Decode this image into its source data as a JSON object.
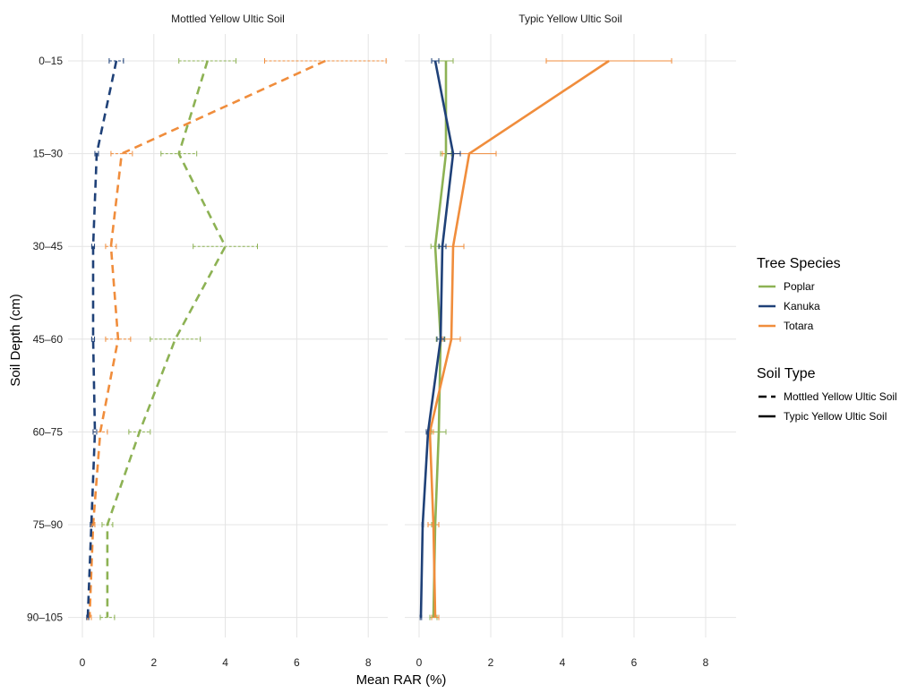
{
  "chart_data": {
    "type": "line",
    "orientation": "depth-profile",
    "xlabel": "Mean RAR (%)",
    "ylabel": "Soil Depth (cm)",
    "xlim": [
      0,
      9
    ],
    "x_ticks": [
      0,
      2,
      4,
      6,
      8
    ],
    "x_tick_labels": [
      "0",
      "2",
      "4",
      "6",
      "8"
    ],
    "depths": [
      "0–15",
      "15–30",
      "30–45",
      "45–60",
      "60–75",
      "75–90",
      "90–105"
    ],
    "grid": true,
    "legend_position": "right",
    "legend": {
      "species_title": "Tree Species",
      "species": [
        {
          "key": "poplar",
          "name": "Poplar",
          "color": "#8db254"
        },
        {
          "key": "kanuka",
          "name": "Kanuka",
          "color": "#1f4178"
        },
        {
          "key": "totara",
          "name": "Totara",
          "color": "#f08d3c"
        }
      ],
      "soil_title": "Soil Type",
      "soil": [
        {
          "key": "mottled",
          "name": "Mottled Yellow Ultic Soil",
          "line": "dashed"
        },
        {
          "key": "typic",
          "name": "Typic Yellow Ultic Soil",
          "line": "solid"
        }
      ]
    },
    "panels": [
      {
        "title": "Mottled Yellow Ultic Soil",
        "line": "dashed",
        "series": [
          {
            "species": "poplar",
            "values": [
              3.5,
              2.7,
              4.0,
              2.6,
              1.6,
              0.7,
              0.7
            ],
            "err": [
              0.8,
              0.5,
              0.9,
              0.7,
              0.3,
              0.15,
              0.2
            ]
          },
          {
            "species": "totara",
            "values": [
              6.8,
              1.1,
              0.8,
              1.0,
              0.5,
              0.3,
              0.2
            ],
            "err": [
              1.7,
              0.3,
              0.15,
              0.35,
              0.2,
              0.05,
              0.05
            ]
          },
          {
            "species": "kanuka",
            "values": [
              0.95,
              0.4,
              0.3,
              0.3,
              0.35,
              0.25,
              0.15
            ],
            "err": [
              0.2,
              0.05,
              0.04,
              0.04,
              0.05,
              0.03,
              0.03
            ]
          }
        ]
      },
      {
        "title": "Typic Yellow Ultic Soil",
        "line": "solid",
        "series": [
          {
            "species": "poplar",
            "values": [
              0.75,
              0.75,
              0.45,
              0.6,
              0.55,
              0.45,
              0.4
            ],
            "err": [
              0.2,
              0.15,
              0.12,
              0.12,
              0.2,
              0.1,
              0.1
            ]
          },
          {
            "species": "totara",
            "values": [
              5.3,
              1.4,
              0.95,
              0.9,
              0.3,
              0.4,
              0.45
            ],
            "err": [
              1.75,
              0.75,
              0.3,
              0.25,
              0.1,
              0.15,
              0.1
            ]
          },
          {
            "species": "kanuka",
            "values": [
              0.45,
              0.95,
              0.65,
              0.6,
              0.25,
              0.1,
              0.05
            ],
            "err": [
              0.1,
              0.2,
              0.1,
              0.1,
              0.05,
              0.02,
              0.02
            ]
          }
        ]
      }
    ]
  }
}
